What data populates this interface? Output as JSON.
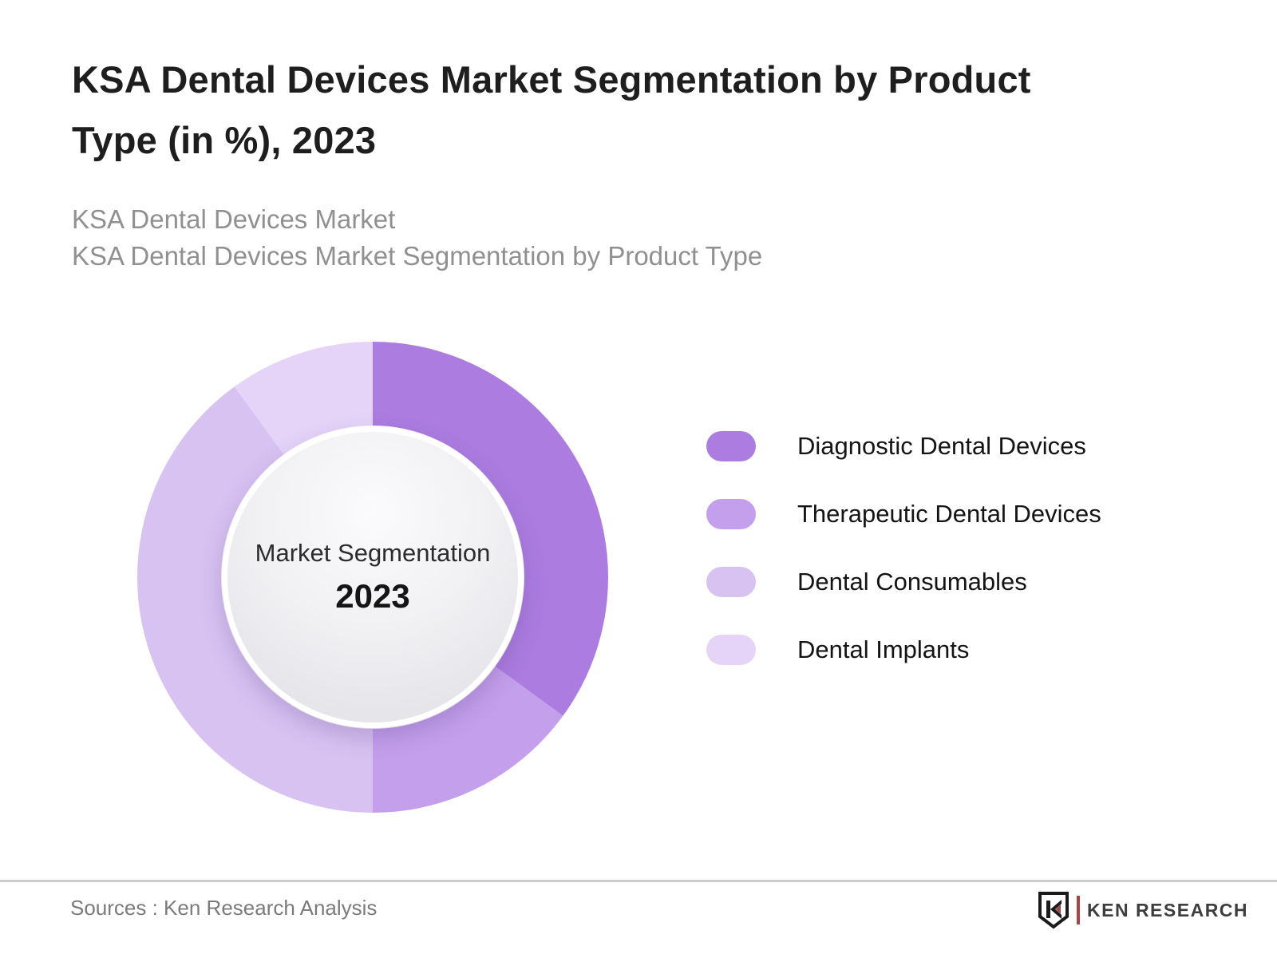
{
  "header": {
    "title_line1": "KSA Dental Devices Market Segmentation by Product",
    "title_line2": "Type (in %), 2023",
    "subtitle_line1": "KSA Dental Devices Market",
    "subtitle_line2": "KSA Dental Devices Market Segmentation by Product Type"
  },
  "chart_data": {
    "type": "pie",
    "subtype": "donut",
    "title": "KSA Dental Devices Market Segmentation by Product Type (in %), 2023",
    "year": "2023",
    "unit": "%",
    "start_angle_deg": 0,
    "direction": "clockwise",
    "legend_position": "right",
    "center_label_line1": "Market Segmentation",
    "center_label_line2": "2023",
    "categories": [
      "Diagnostic Dental Devices",
      "Therapeutic Dental Devices",
      "Dental Consumables",
      "Dental Implants"
    ],
    "values": [
      35,
      15,
      40,
      10
    ],
    "colors": [
      "#AC7CE0",
      "#C49FEC",
      "#D8C2F2",
      "#E5D4F8"
    ]
  },
  "footer": {
    "source_text": "Sources : Ken Research Analysis",
    "logo_text": "KEN RESEARCH",
    "logo_icon": "ken-research-shield-icon",
    "logo_accent_color": "#A6444A",
    "divider_color": "#CCCCCC"
  }
}
